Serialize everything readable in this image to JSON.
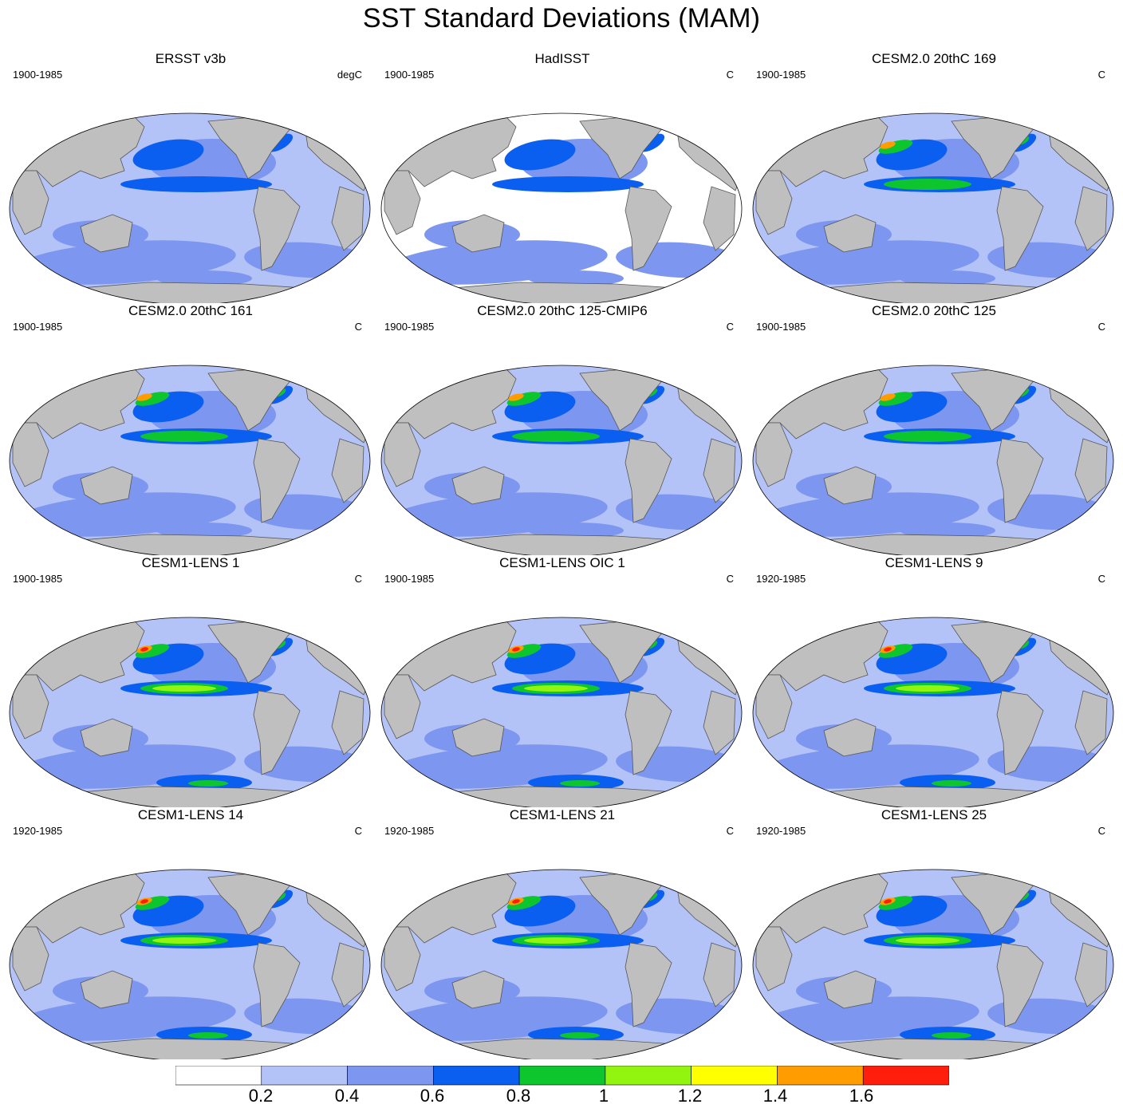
{
  "title": "SST Standard Deviations (MAM)",
  "panels": [
    {
      "title": "ERSST v3b",
      "period": "1900-1985",
      "units": "degC"
    },
    {
      "title": "HadISST",
      "period": "1900-1985",
      "units": "C"
    },
    {
      "title": "CESM2.0 20thC 169",
      "period": "1900-1985",
      "units": "C"
    },
    {
      "title": "CESM2.0 20thC 161",
      "period": "1900-1985",
      "units": "C"
    },
    {
      "title": "CESM2.0 20thC 125-CMIP6",
      "period": "1900-1985",
      "units": "C"
    },
    {
      "title": "CESM2.0 20thC 125",
      "period": "1900-1985",
      "units": "C"
    },
    {
      "title": "CESM1-LENS 1",
      "period": "1900-1985",
      "units": "C"
    },
    {
      "title": "CESM1-LENS OIC 1",
      "period": "1900-1985",
      "units": "C"
    },
    {
      "title": "CESM1-LENS 9",
      "period": "1920-1985",
      "units": "C"
    },
    {
      "title": "CESM1-LENS 14",
      "period": "1920-1985",
      "units": "C"
    },
    {
      "title": "CESM1-LENS 21",
      "period": "1920-1985",
      "units": "C"
    },
    {
      "title": "CESM1-LENS 25",
      "period": "1920-1985",
      "units": "C"
    }
  ],
  "colorbar": {
    "labels": [
      "0.2",
      "0.4",
      "0.6",
      "0.8",
      "1",
      "1.2",
      "1.4",
      "1.6"
    ],
    "colors": [
      "#ffffff",
      "#b4c3f7",
      "#7d96f0",
      "#0a5ff0",
      "#0dc52d",
      "#92f50f",
      "#ffff00",
      "#ff9c00",
      "#ff1e0c"
    ]
  },
  "land_color": "#bfbfbf"
}
